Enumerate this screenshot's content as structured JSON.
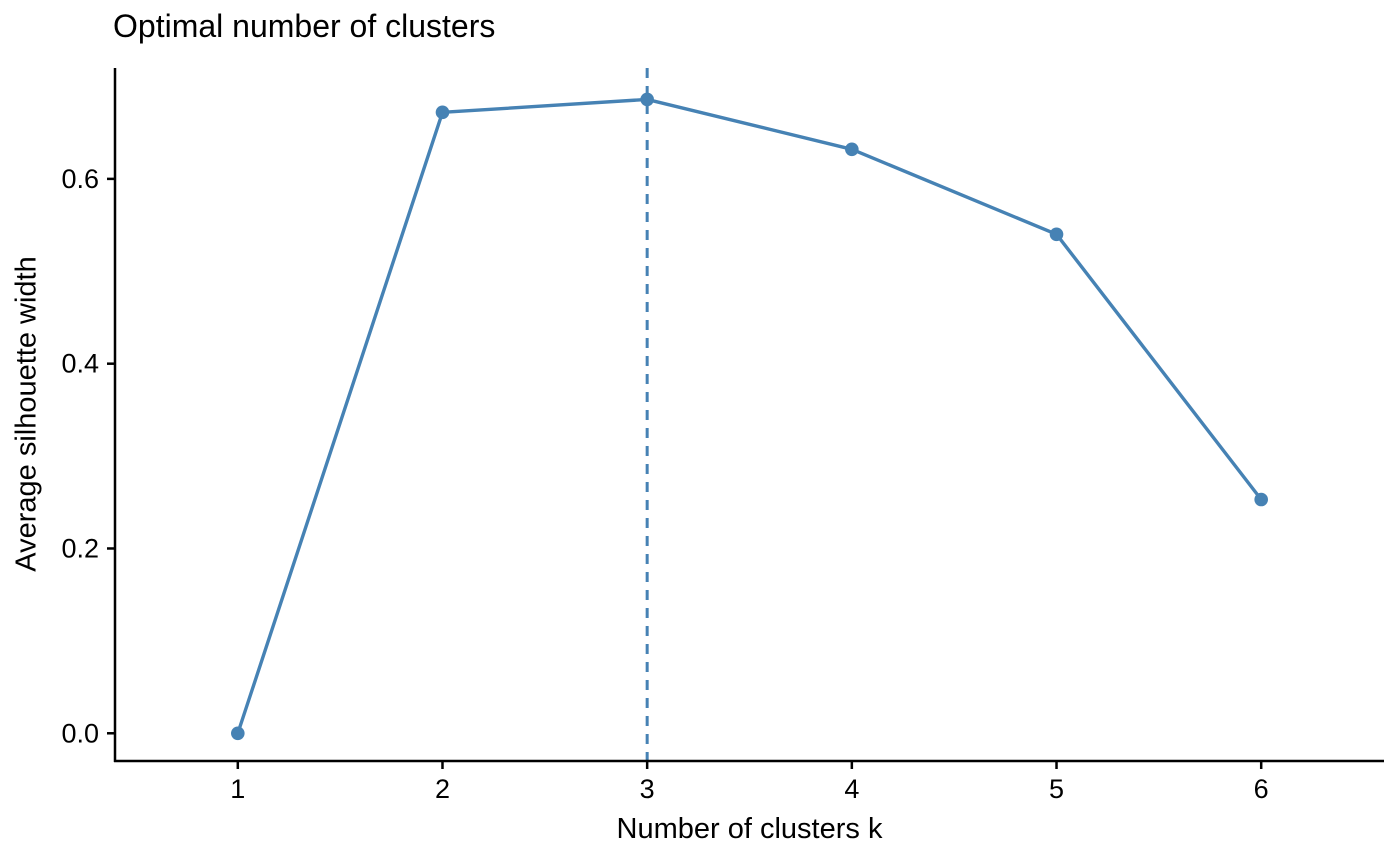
{
  "chart_data": {
    "type": "line",
    "title": "Optimal number of clusters",
    "xlabel": "Number of clusters k",
    "ylabel": "Average silhouette width",
    "x": [
      1,
      2,
      3,
      4,
      5,
      6
    ],
    "values": [
      0.0,
      0.672,
      0.686,
      0.632,
      0.54,
      0.253
    ],
    "x_tick_values": [
      1,
      2,
      3,
      4,
      5,
      6
    ],
    "x_tick_labels": [
      "1",
      "2",
      "3",
      "4",
      "5",
      "6"
    ],
    "y_tick_values": [
      0.0,
      0.2,
      0.4,
      0.6
    ],
    "y_tick_labels": [
      "0.0",
      "0.2",
      "0.4",
      "0.6"
    ],
    "xlim": [
      0.4,
      6.6
    ],
    "ylim": [
      -0.03,
      0.72
    ],
    "grid": false,
    "legend_position": "none",
    "optimal_k_vline": 3,
    "line_style": "solid",
    "vline_style": "dashed",
    "marker": "circle",
    "colors": {
      "series": "#4682B4",
      "axis": "#000000",
      "text": "#000000",
      "background": "#FFFFFF"
    }
  }
}
